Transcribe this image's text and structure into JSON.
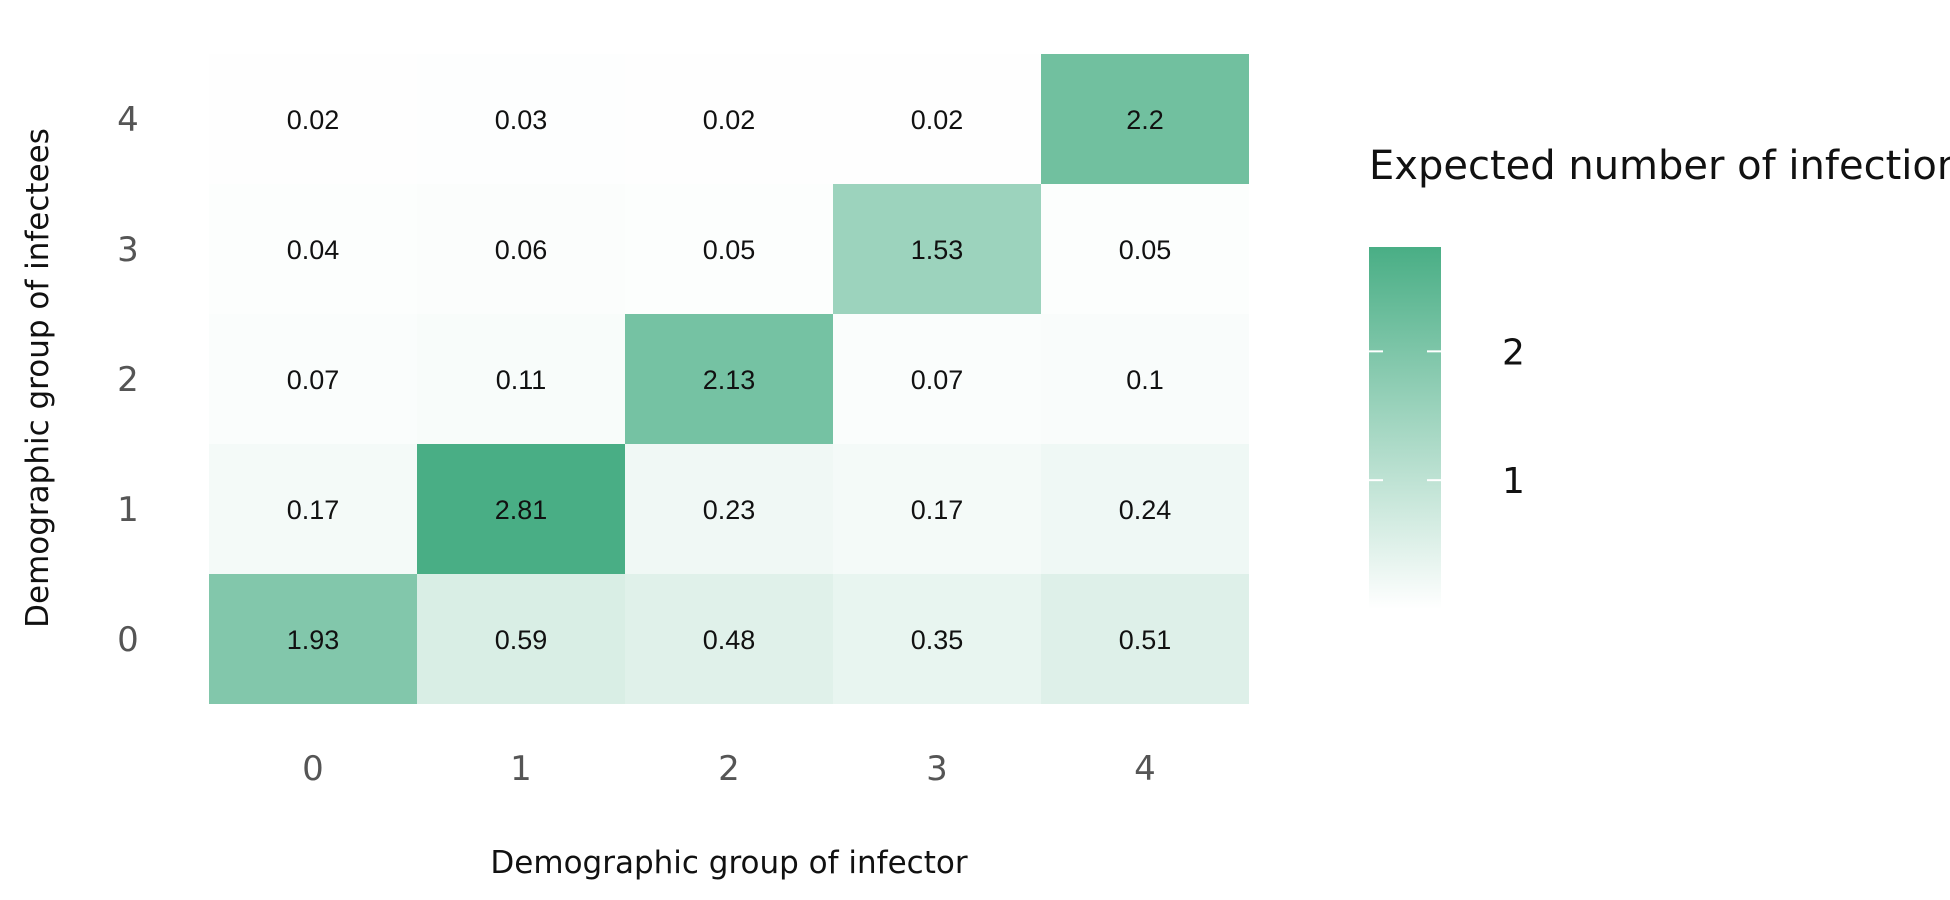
{
  "chart_data": {
    "type": "heatmap",
    "xlabel": "Demographic group of infector",
    "ylabel": "Demographic group of infectees",
    "x_categories": [
      "0",
      "1",
      "2",
      "3",
      "4"
    ],
    "y_categories": [
      "0",
      "1",
      "2",
      "3",
      "4"
    ],
    "values": [
      [
        1.93,
        0.59,
        0.48,
        0.35,
        0.51
      ],
      [
        0.17,
        2.81,
        0.23,
        0.17,
        0.24
      ],
      [
        0.07,
        0.11,
        2.13,
        0.07,
        0.1
      ],
      [
        0.04,
        0.06,
        0.05,
        1.53,
        0.05
      ],
      [
        0.02,
        0.03,
        0.02,
        0.02,
        2.2
      ]
    ],
    "value_labels": [
      [
        "1.93",
        "0.59",
        "0.48",
        "0.35",
        "0.51"
      ],
      [
        "0.17",
        "2.81",
        "0.23",
        "0.17",
        "0.24"
      ],
      [
        "0.07",
        "0.11",
        "2.13",
        "0.07",
        "0.1"
      ],
      [
        "0.04",
        "0.06",
        "0.05",
        "1.53",
        "0.05"
      ],
      [
        "0.02",
        "0.03",
        "0.02",
        "0.02",
        "2.2"
      ]
    ],
    "legend": {
      "title": "Expected number of infections",
      "ticks": [
        1,
        2
      ],
      "tick_labels": [
        "1",
        "2"
      ],
      "range": [
        0,
        2.81
      ],
      "placement": "right"
    },
    "colors": {
      "low": "#ffffff",
      "high": "#49ae85"
    },
    "grid": false
  }
}
